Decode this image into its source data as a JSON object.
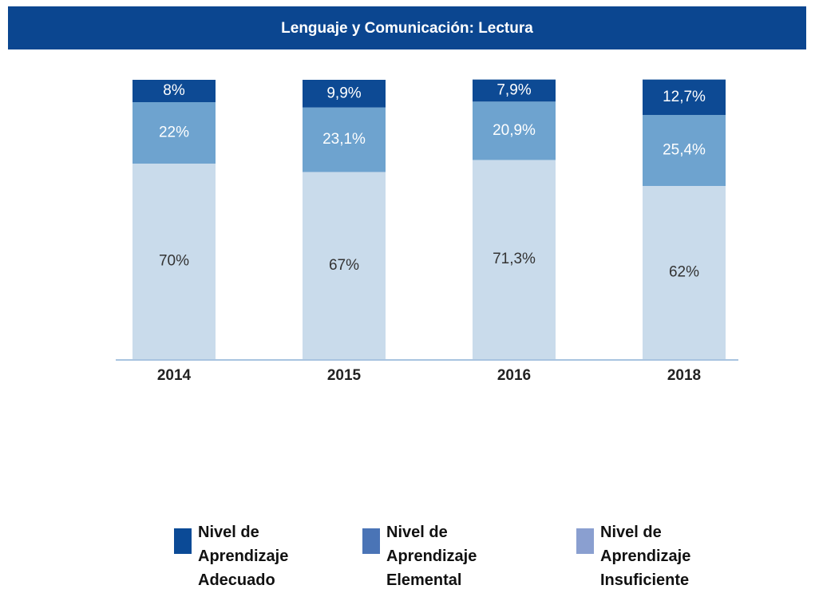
{
  "chart_data": {
    "type": "stacked_bar",
    "title": "Lenguaje y Comunicación: Lectura",
    "categories": [
      "2014",
      "2015",
      "2016",
      "2018"
    ],
    "ylim": [
      0,
      100
    ],
    "series": [
      {
        "name": "Nivel de Aprendizaje Insuficiente",
        "color": "#c9dbeb",
        "legend_color": "#8a9fd0",
        "label_color": "#333333",
        "values": [
          70,
          67,
          71.3,
          62
        ],
        "value_labels": [
          "70%",
          "67%",
          "71,3%",
          "62%"
        ]
      },
      {
        "name": "Nivel de Aprendizaje Elemental",
        "color": "#6ea3cf",
        "legend_color": "#4a74b6",
        "label_color": "#ffffff",
        "values": [
          22,
          23.1,
          20.9,
          25.4
        ],
        "value_labels": [
          "22%",
          "23,1%",
          "20,9%",
          "25,4%"
        ]
      },
      {
        "name": "Nivel de Aprendizaje Adecuado",
        "color": "#0d4a94",
        "legend_color": "#0b4a96",
        "label_color": "#ffffff",
        "values": [
          8,
          9.9,
          7.9,
          12.7
        ],
        "value_labels": [
          "8%",
          "9,9%",
          "7,9%",
          "12,7%"
        ]
      }
    ],
    "legend_order": [
      2,
      1,
      0
    ]
  }
}
